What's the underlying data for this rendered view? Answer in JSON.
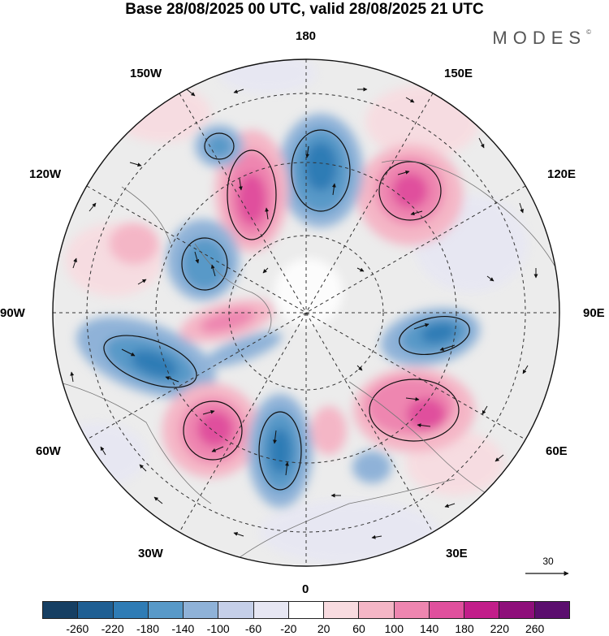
{
  "title": "Base 28/08/2025 00 UTC, valid 28/08/2025 21 UTC",
  "brand": "MODES",
  "brand_mark": "©",
  "longitude_labels": {
    "n180": "180",
    "w150": "150W",
    "e150": "150E",
    "w120": "120W",
    "e120": "120E",
    "w90": "90W",
    "e90": "90E",
    "w60": "60W",
    "e60": "60E",
    "w30": "30W",
    "e30": "30E",
    "s0": "0"
  },
  "vector_reference": "30",
  "colorbar": {
    "ticks": [
      "-260",
      "-220",
      "-180",
      "-140",
      "-100",
      "-60",
      "-20",
      "20",
      "60",
      "100",
      "140",
      "180",
      "220",
      "260"
    ],
    "colors": [
      "#163f63",
      "#1f5f93",
      "#2f7cb5",
      "#5899c8",
      "#8fb2d8",
      "#c5cfe8",
      "#e7e7f3",
      "#ffffff",
      "#f8dbe0",
      "#f4b6c6",
      "#ee86b0",
      "#e0509d",
      "#c21e8a",
      "#8e0f7a",
      "#5b0e6e"
    ]
  }
}
